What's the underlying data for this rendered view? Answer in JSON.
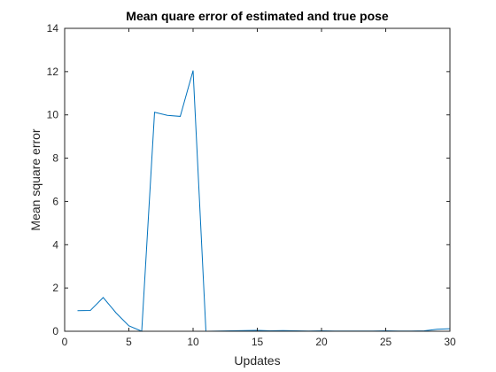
{
  "chart_data": {
    "type": "line",
    "title": "Mean quare error of estimated and true pose",
    "xlabel": "Updates",
    "ylabel": "Mean square error",
    "xlim": [
      0,
      30
    ],
    "ylim": [
      0,
      14
    ],
    "xticks": [
      0,
      5,
      10,
      15,
      20,
      25,
      30
    ],
    "yticks": [
      0,
      2,
      4,
      6,
      8,
      10,
      12,
      14
    ],
    "grid": false,
    "series": [
      {
        "color": "#0072BD",
        "x": [
          1,
          2,
          3,
          4,
          5,
          6,
          7,
          8,
          9,
          10,
          11,
          12,
          13,
          14,
          15,
          16,
          17,
          18,
          19,
          20,
          21,
          22,
          23,
          24,
          25,
          26,
          27,
          28,
          29,
          30
        ],
        "y": [
          0.95,
          0.96,
          1.56,
          0.85,
          0.25,
          0.0,
          10.12,
          9.98,
          9.93,
          12.05,
          0.0,
          0.01,
          0.02,
          0.03,
          0.04,
          0.02,
          0.03,
          0.02,
          0.01,
          0.02,
          0.01,
          0.01,
          0.01,
          0.01,
          0.02,
          0.01,
          0.01,
          0.02,
          0.09,
          0.12
        ]
      }
    ]
  }
}
